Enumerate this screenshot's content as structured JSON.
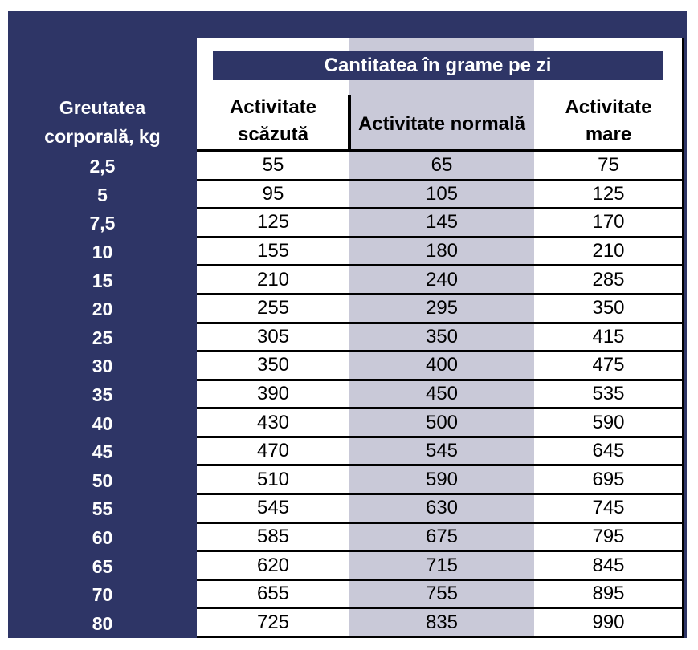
{
  "table": {
    "title": "Cantitatea în grame pe zi",
    "row_header": "Greutatea corporală, kg",
    "columns": [
      "Activitate scăzută",
      "Activitate normală",
      "Activitate mare"
    ],
    "rows": [
      [
        "2,5",
        55,
        65,
        75
      ],
      [
        "5",
        95,
        105,
        125
      ],
      [
        "7,5",
        125,
        145,
        170
      ],
      [
        "10",
        155,
        180,
        210
      ],
      [
        "15",
        210,
        240,
        285
      ],
      [
        "20",
        255,
        295,
        350
      ],
      [
        "25",
        305,
        350,
        415
      ],
      [
        "30",
        350,
        400,
        475
      ],
      [
        "35",
        390,
        450,
        535
      ],
      [
        "40",
        430,
        500,
        590
      ],
      [
        "45",
        470,
        545,
        645
      ],
      [
        "50",
        510,
        590,
        695
      ],
      [
        "55",
        545,
        630,
        745
      ],
      [
        "60",
        585,
        675,
        795
      ],
      [
        "65",
        620,
        715,
        845
      ],
      [
        "70",
        655,
        755,
        895
      ],
      [
        "80",
        725,
        835,
        990
      ]
    ]
  }
}
